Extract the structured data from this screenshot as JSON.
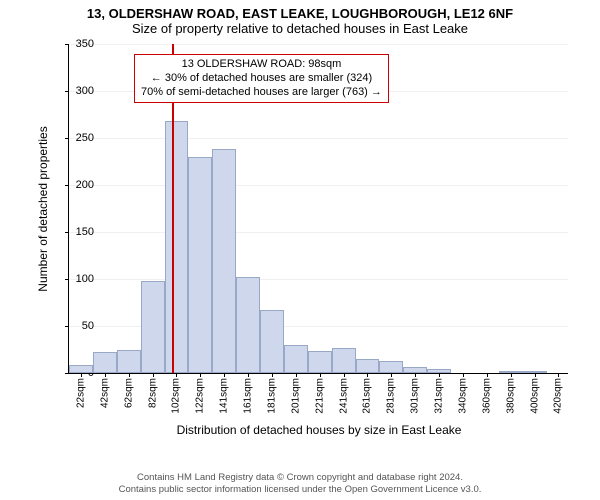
{
  "title_main": "13, OLDERSHAW ROAD, EAST LEAKE, LOUGHBOROUGH, LE12 6NF",
  "title_sub": "Size of property relative to detached houses in East Leake",
  "chart": {
    "type": "histogram",
    "ylabel": "Number of detached properties",
    "xlabel": "Distribution of detached houses by size in East Leake",
    "ylim": [
      0,
      350
    ],
    "ytick_step": 50,
    "background_color": "#ffffff",
    "grid_color": "#f0f0f0",
    "bar_fill": "#ced7eb",
    "bar_border": "#9aa8c8",
    "marker_color": "#cc0000",
    "marker_x": 98,
    "xlim": [
      12,
      430
    ],
    "bin_width": 20,
    "bins": [
      {
        "start": 12,
        "label": "22sqm",
        "value": 9
      },
      {
        "start": 32,
        "label": "42sqm",
        "value": 22
      },
      {
        "start": 52,
        "label": "62sqm",
        "value": 24
      },
      {
        "start": 72,
        "label": "82sqm",
        "value": 98
      },
      {
        "start": 92,
        "label": "102sqm",
        "value": 268
      },
      {
        "start": 112,
        "label": "122sqm",
        "value": 230
      },
      {
        "start": 132,
        "label": "141sqm",
        "value": 238
      },
      {
        "start": 152,
        "label": "161sqm",
        "value": 102
      },
      {
        "start": 172,
        "label": "181sqm",
        "value": 67
      },
      {
        "start": 192,
        "label": "201sqm",
        "value": 30
      },
      {
        "start": 212,
        "label": "221sqm",
        "value": 23
      },
      {
        "start": 232,
        "label": "241sqm",
        "value": 27
      },
      {
        "start": 252,
        "label": "261sqm",
        "value": 15
      },
      {
        "start": 272,
        "label": "281sqm",
        "value": 13
      },
      {
        "start": 292,
        "label": "301sqm",
        "value": 6
      },
      {
        "start": 312,
        "label": "321sqm",
        "value": 4
      },
      {
        "start": 332,
        "label": "340sqm",
        "value": 0
      },
      {
        "start": 352,
        "label": "360sqm",
        "value": 0
      },
      {
        "start": 372,
        "label": "380sqm",
        "value": 1
      },
      {
        "start": 392,
        "label": "400sqm",
        "value": 1
      },
      {
        "start": 412,
        "label": "420sqm",
        "value": 0
      }
    ],
    "annotation": {
      "lines": [
        "13 OLDERSHAW ROAD: 98sqm",
        "← 30% of detached houses are smaller (324)",
        "70% of semi-detached houses are larger (763) →"
      ]
    }
  },
  "footer_line1": "Contains HM Land Registry data © Crown copyright and database right 2024.",
  "footer_line2": "Contains public sector information licensed under the Open Government Licence v3.0."
}
